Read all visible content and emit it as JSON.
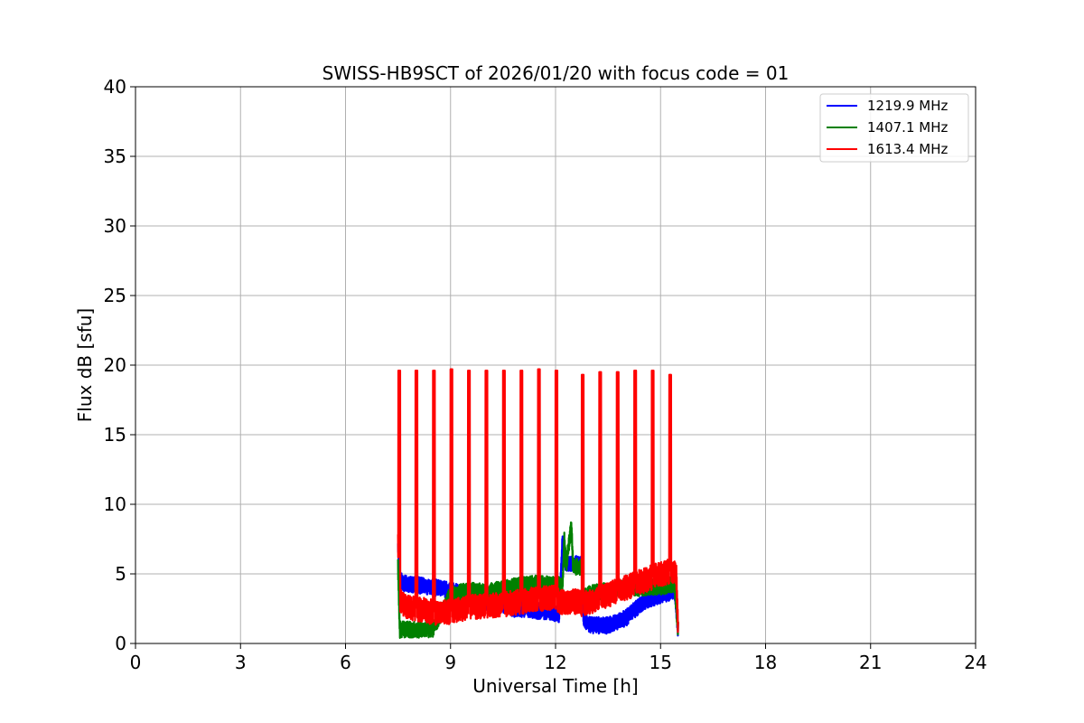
{
  "chart_data": {
    "type": "line",
    "title": "SWISS-HB9SCT of 2026/01/20 with focus code = 01",
    "xlabel": "Universal Time [h]",
    "ylabel": "Flux dB [sfu]",
    "xlim": [
      0,
      24
    ],
    "ylim": [
      0,
      40
    ],
    "xticks": [
      0,
      3,
      6,
      9,
      12,
      15,
      18,
      21,
      24
    ],
    "yticks": [
      0,
      5,
      10,
      15,
      20,
      25,
      30,
      35,
      40
    ],
    "grid": true,
    "legend_position": "top-right",
    "series": [
      {
        "name": "1219.9 MHz",
        "color": "#0000ff",
        "noise": 0.6,
        "x": [
          7.5,
          7.55,
          7.7,
          8.0,
          8.3,
          8.6,
          9.0,
          9.5,
          10.0,
          10.5,
          10.8,
          11.2,
          11.6,
          11.9,
          12.1,
          12.2,
          12.25,
          12.3,
          12.5,
          12.75,
          12.8,
          12.9,
          13.0,
          13.5,
          14.0,
          14.5,
          15.0,
          15.3,
          15.4,
          15.5
        ],
        "y": [
          7.0,
          4.5,
          4.3,
          4.2,
          4.1,
          4.0,
          3.8,
          3.5,
          3.0,
          2.8,
          2.5,
          2.5,
          2.3,
          2.3,
          2.0,
          7.5,
          5.8,
          5.8,
          5.7,
          5.8,
          1.8,
          1.4,
          1.3,
          1.3,
          1.8,
          3.0,
          3.5,
          3.7,
          3.8,
          1.0
        ]
      },
      {
        "name": "1407.1 MHz",
        "color": "#008000",
        "noise": 0.6,
        "x": [
          7.5,
          7.55,
          7.8,
          8.2,
          8.5,
          8.8,
          9.0,
          9.5,
          10.0,
          10.5,
          11.0,
          11.5,
          12.0,
          12.2,
          12.25,
          12.3,
          12.45,
          12.5,
          12.75,
          12.8,
          13.0,
          13.5,
          14.0,
          14.5,
          15.0,
          15.3,
          15.4,
          15.5
        ],
        "y": [
          5.5,
          1.0,
          1.0,
          1.0,
          1.0,
          2.5,
          3.5,
          3.8,
          3.7,
          3.9,
          4.2,
          4.3,
          4.2,
          4.2,
          7.5,
          5.5,
          8.5,
          5.5,
          5.5,
          3.3,
          3.6,
          3.8,
          4.0,
          4.0,
          4.1,
          4.2,
          4.3,
          1.0
        ]
      },
      {
        "name": "1613.4 MHz",
        "color": "#ff0000",
        "noise": 0.9,
        "spike_times": [
          7.51,
          8.0,
          8.5,
          9.0,
          9.5,
          10.0,
          10.5,
          11.0,
          11.5,
          12.0,
          12.75,
          13.25,
          13.75,
          14.25,
          14.75,
          15.25
        ],
        "spike_peaks": [
          19.6,
          19.6,
          19.6,
          19.7,
          19.6,
          19.6,
          19.6,
          19.6,
          19.7,
          19.6,
          19.3,
          19.5,
          19.5,
          19.6,
          19.6,
          19.3
        ],
        "spike_width": 0.05,
        "x": [
          7.5,
          7.55,
          7.8,
          8.2,
          8.6,
          9.0,
          9.5,
          10.0,
          10.5,
          11.0,
          11.5,
          12.0,
          12.1,
          12.2,
          12.3,
          12.5,
          12.7,
          12.75,
          13.0,
          13.5,
          14.0,
          14.5,
          15.0,
          15.3,
          15.45,
          15.5
        ],
        "y": [
          7.0,
          3.0,
          2.6,
          2.4,
          2.2,
          2.3,
          2.6,
          2.7,
          2.8,
          3.0,
          3.2,
          3.3,
          3.0,
          3.0,
          3.0,
          3.0,
          3.0,
          2.8,
          3.0,
          3.5,
          4.0,
          4.5,
          5.0,
          5.2,
          5.0,
          1.0
        ]
      }
    ]
  }
}
